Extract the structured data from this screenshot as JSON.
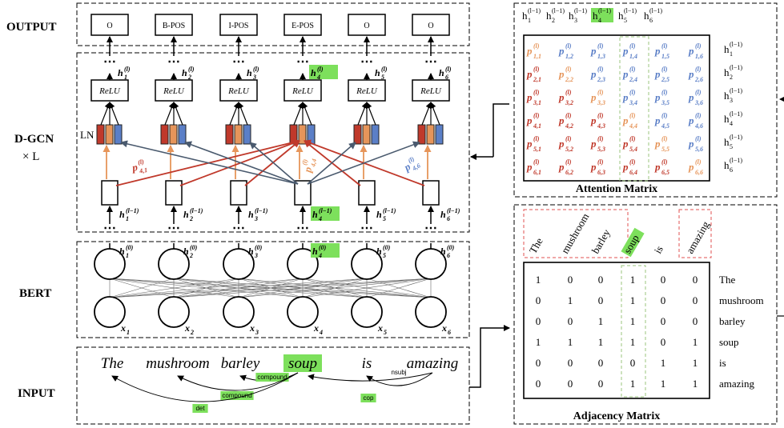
{
  "labels": {
    "output": "OUTPUT",
    "dgcn": "D-GCN",
    "times_l": "× L",
    "bert": "BERT",
    "input": "INPUT",
    "ln": "LN"
  },
  "output_tags": [
    "O",
    "B-POS",
    "I-POS",
    "E-POS",
    "O",
    "O"
  ],
  "relu_label": "ReLU",
  "words": [
    "The",
    "mushroom",
    "barley",
    "soup",
    "is",
    "amazing"
  ],
  "highlight_index": 3,
  "colors": {
    "red": "#c0392b",
    "orange": "#e6955a",
    "blue": "#5b7fc7",
    "dark": "#4a5a6e",
    "highlight": "#7de05c",
    "dash_red": "#e05050",
    "dash_green": "#9bc47c"
  },
  "dependencies": [
    {
      "label": "compound",
      "from": 3,
      "to": 2
    },
    {
      "label": "compound",
      "from": 3,
      "to": 1
    },
    {
      "label": "det",
      "from": 3,
      "to": 0
    },
    {
      "label": "nsubj",
      "from": 5,
      "to": 3
    },
    {
      "label": "cop",
      "from": 5,
      "to": 4
    }
  ],
  "gcn_edge_labels": {
    "p41": "p",
    "p41_sub": "4,1",
    "p41_sup": "(l)",
    "p44": "p",
    "p44_sub": "4,4",
    "p44_sup": "(l)",
    "p46": "p",
    "p46_sub": "4,6",
    "p46_sup": "(l)"
  },
  "h_layer_sup": "(l)",
  "h_prev_sup": "(l−1)",
  "h_zero_sup": "(0)",
  "attention_matrix": {
    "title": "Attention Matrix",
    "header_sup": "(l−1)",
    "entry_sup": "(l)",
    "color_grid": [
      [
        "o",
        "b",
        "b",
        "b",
        "b",
        "b"
      ],
      [
        "r",
        "o",
        "b",
        "b",
        "b",
        "b"
      ],
      [
        "r",
        "r",
        "o",
        "b",
        "b",
        "b"
      ],
      [
        "r",
        "r",
        "r",
        "o",
        "b",
        "b"
      ],
      [
        "r",
        "r",
        "r",
        "r",
        "o",
        "b"
      ],
      [
        "r",
        "r",
        "r",
        "r",
        "r",
        "o"
      ]
    ]
  },
  "adjacency_matrix": {
    "title": "Adjacency Matrix",
    "rows": [
      [
        1,
        0,
        0,
        1,
        0,
        0
      ],
      [
        0,
        1,
        0,
        1,
        0,
        0
      ],
      [
        0,
        0,
        1,
        1,
        0,
        0
      ],
      [
        1,
        1,
        1,
        1,
        0,
        1
      ],
      [
        0,
        0,
        0,
        0,
        1,
        1
      ],
      [
        0,
        0,
        0,
        1,
        1,
        1
      ]
    ],
    "row_labels": [
      "The",
      "mushroom",
      "barley",
      "soup",
      "is",
      "amazing"
    ],
    "col_labels": [
      "The",
      "mushroom",
      "barley",
      "soup",
      "is",
      "amazing"
    ]
  }
}
